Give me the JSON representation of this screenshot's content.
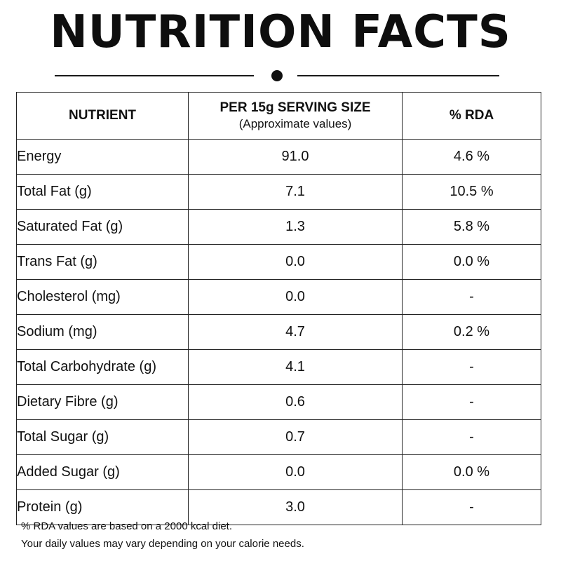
{
  "title": "NUTRITION FACTS",
  "table": {
    "headers": {
      "nutrient": "NUTRIENT",
      "serving": "PER 15g SERVING SIZE",
      "serving_sub": "(Approximate values)",
      "rda": "% RDA"
    },
    "rows": [
      {
        "nutrient": "Energy",
        "value": "91.0",
        "rda": "4.6 %"
      },
      {
        "nutrient": "Total Fat (g)",
        "value": "7.1",
        "rda": "10.5 %"
      },
      {
        "nutrient": "Saturated Fat (g)",
        "value": "1.3",
        "rda": "5.8 %"
      },
      {
        "nutrient": "Trans Fat (g)",
        "value": "0.0",
        "rda": "0.0 %"
      },
      {
        "nutrient": "Cholesterol (mg)",
        "value": "0.0",
        "rda": "-"
      },
      {
        "nutrient": "Sodium (mg)",
        "value": "4.7",
        "rda": "0.2 %"
      },
      {
        "nutrient": "Total Carbohydrate (g)",
        "value": "4.1",
        "rda": "-"
      },
      {
        "nutrient": "Dietary Fibre (g)",
        "value": "0.6",
        "rda": "-"
      },
      {
        "nutrient": "Total Sugar (g)",
        "value": "0.7",
        "rda": "-"
      },
      {
        "nutrient": "Added Sugar (g)",
        "value": "0.0",
        "rda": "0.0 %"
      },
      {
        "nutrient": "Protein (g)",
        "value": "3.0",
        "rda": "-"
      }
    ]
  },
  "footnotes": [
    "% RDA values are based on a 2000 kcal diet.",
    "Your daily values may vary depending on your calorie needs."
  ]
}
